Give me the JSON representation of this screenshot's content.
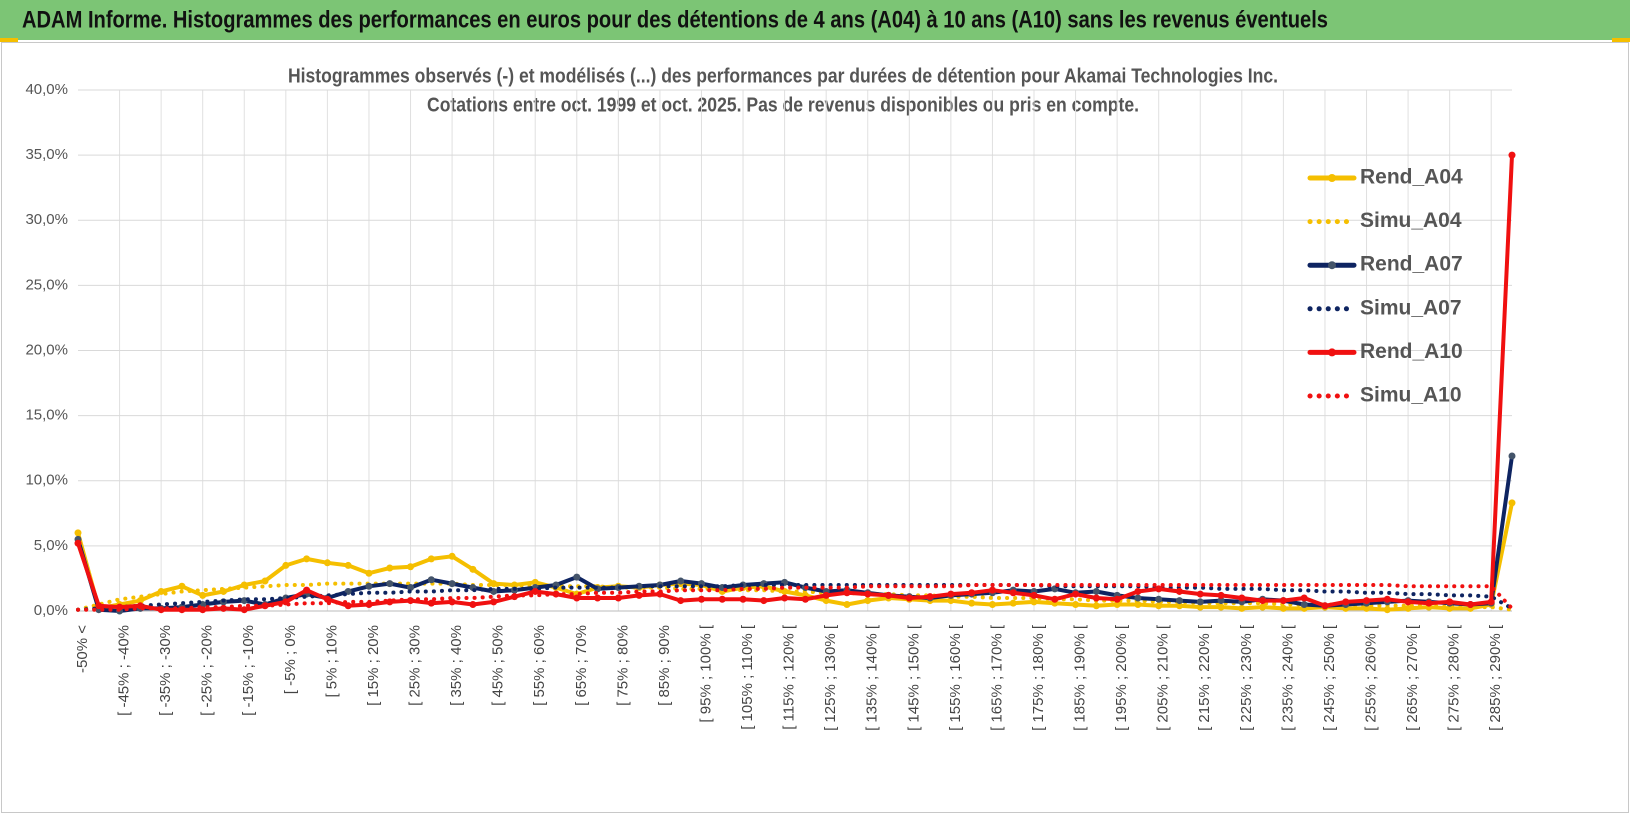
{
  "header": {
    "title": "ADAM Informe. Histogrammes des performances en euros pour des détentions de 4 ans (A04) à 10 ans (A10) sans les revenus éventuels"
  },
  "chart_data": {
    "type": "line",
    "title": "Histogrammes observés (-) et modélisés (...) des performances par durées de détention pour Akamai Technologies Inc.",
    "subtitle": "Cotations entre oct. 1999 et oct. 2025. Pas de revenus disponibles ou pris en compte.",
    "categories": [
      "-50% <",
      null,
      "[ -45% ; -40%",
      null,
      "[ -35% ; -30%",
      null,
      "[ -25% ; -20%",
      null,
      "[ -15% ; -10%",
      null,
      "[ -5% ; 0%",
      null,
      "[ 5% ; 10%",
      null,
      "[ 15% ; 20%",
      null,
      "[ 25% ; 30%",
      null,
      "[ 35% ; 40%",
      null,
      "[ 45% ; 50%",
      null,
      "[ 55% ; 60%",
      null,
      "[ 65% ; 70%",
      null,
      "[ 75% ; 80%",
      null,
      "[ 85% ; 90%",
      null,
      "[ 95% ; 100% [",
      null,
      "[ 105% ; 110% [",
      null,
      "[ 115% ; 120% [",
      null,
      "[ 125% ; 130% [",
      null,
      "[ 135% ; 140% [",
      null,
      "[ 145% ; 150% [",
      null,
      "[ 155% ; 160% [",
      null,
      "[ 165% ; 170% [",
      null,
      "[ 175% ; 180% [",
      null,
      "[ 185% ; 190% [",
      null,
      "[ 195% ; 200% [",
      null,
      "[ 205% ; 210% [",
      null,
      "[ 215% ; 220% [",
      null,
      "[ 225% ; 230% [",
      null,
      "[ 235% ; 240% [",
      null,
      "[ 245% ; 250% [",
      null,
      "[ 255% ; 260% [",
      null,
      "[ 265% ; 270% [",
      null,
      "[ 275% ; 280% [",
      null,
      "[ 285% ; 290% [",
      null
    ],
    "ylim": [
      0,
      40
    ],
    "yticks": [
      {
        "value": 0,
        "label": "0,0%"
      },
      {
        "value": 5,
        "label": "5,0%"
      },
      {
        "value": 10,
        "label": "10,0%"
      },
      {
        "value": 15,
        "label": "15,0%"
      },
      {
        "value": 20,
        "label": "20,0%"
      },
      {
        "value": 25,
        "label": "25,0%"
      },
      {
        "value": 30,
        "label": "30,0%"
      },
      {
        "value": 35,
        "label": "35,0%"
      },
      {
        "value": 40,
        "label": "40,0%"
      }
    ],
    "grid": true,
    "legend": "right",
    "series": [
      {
        "name": "Rend_A04",
        "color": "#f5bf00",
        "style": "solid",
        "values": [
          6.0,
          0.2,
          0.5,
          0.8,
          1.5,
          1.9,
          1.2,
          1.5,
          2.0,
          2.3,
          3.5,
          4.0,
          3.7,
          3.5,
          2.9,
          3.3,
          3.4,
          4.0,
          4.2,
          3.2,
          2.1,
          2.0,
          2.2,
          1.8,
          1.3,
          1.8,
          1.9,
          1.8,
          2.0,
          2.1,
          2.0,
          1.5,
          1.8,
          1.9,
          1.5,
          1.2,
          0.8,
          0.5,
          0.8,
          1.0,
          0.9,
          0.8,
          0.8,
          0.6,
          0.5,
          0.6,
          0.7,
          0.6,
          0.5,
          0.4,
          0.5,
          0.5,
          0.4,
          0.4,
          0.3,
          0.3,
          0.2,
          0.3,
          0.2,
          0.2,
          0.3,
          0.2,
          0.2,
          0.1,
          0.2,
          0.3,
          0.2,
          0.2,
          0.5,
          8.3
        ]
      },
      {
        "name": "Simu_A04",
        "color": "#f5bf00",
        "style": "dotted",
        "values": [
          0.1,
          0.5,
          0.9,
          1.1,
          1.3,
          1.5,
          1.6,
          1.7,
          1.8,
          1.9,
          2.0,
          2.0,
          2.1,
          2.1,
          2.1,
          2.1,
          2.1,
          2.1,
          2.1,
          2.0,
          2.0,
          2.0,
          1.9,
          1.9,
          1.9,
          1.9,
          1.8,
          1.8,
          1.8,
          1.7,
          1.7,
          1.7,
          1.6,
          1.6,
          1.5,
          1.5,
          1.4,
          1.4,
          1.3,
          1.3,
          1.2,
          1.2,
          1.1,
          1.1,
          1.0,
          1.0,
          1.0,
          0.9,
          0.9,
          0.8,
          0.8,
          0.8,
          0.7,
          0.7,
          0.6,
          0.6,
          0.6,
          0.6,
          0.5,
          0.5,
          0.5,
          0.5,
          0.4,
          0.4,
          0.4,
          0.4,
          0.3,
          0.3,
          0.3,
          0.1
        ]
      },
      {
        "name": "Rend_A07",
        "color": "#0e2461",
        "style": "solid",
        "values": [
          5.5,
          0.1,
          0.0,
          0.2,
          0.2,
          0.3,
          0.5,
          0.7,
          0.8,
          0.5,
          1.0,
          1.3,
          1.0,
          1.5,
          1.9,
          2.1,
          1.8,
          2.4,
          2.1,
          1.8,
          1.5,
          1.6,
          1.8,
          2.0,
          2.6,
          1.7,
          1.8,
          1.9,
          2.0,
          2.3,
          2.1,
          1.8,
          2.0,
          2.1,
          2.2,
          1.8,
          1.5,
          1.6,
          1.4,
          1.2,
          1.1,
          1.0,
          1.2,
          1.3,
          1.4,
          1.6,
          1.5,
          1.7,
          1.4,
          1.5,
          1.2,
          1.0,
          0.9,
          0.8,
          0.7,
          0.8,
          0.7,
          0.9,
          0.8,
          0.5,
          0.4,
          0.5,
          0.6,
          0.7,
          0.8,
          0.7,
          0.6,
          0.5,
          0.6,
          11.9
        ]
      },
      {
        "name": "Simu_A07",
        "color": "#0e2461",
        "style": "dotted",
        "values": [
          0.1,
          0.2,
          0.3,
          0.4,
          0.5,
          0.6,
          0.7,
          0.8,
          0.9,
          0.9,
          1.0,
          1.1,
          1.2,
          1.3,
          1.4,
          1.4,
          1.5,
          1.5,
          1.6,
          1.6,
          1.7,
          1.7,
          1.7,
          1.8,
          1.8,
          1.8,
          1.8,
          1.9,
          1.9,
          1.9,
          1.9,
          1.9,
          2.0,
          2.0,
          2.0,
          2.0,
          2.0,
          2.0,
          2.0,
          2.0,
          2.0,
          2.0,
          2.0,
          2.0,
          2.0,
          2.0,
          2.0,
          1.9,
          1.9,
          1.9,
          1.9,
          1.9,
          1.8,
          1.8,
          1.8,
          1.7,
          1.7,
          1.7,
          1.6,
          1.6,
          1.5,
          1.5,
          1.4,
          1.4,
          1.3,
          1.3,
          1.2,
          1.2,
          1.1,
          0.2
        ]
      },
      {
        "name": "Rend_A10",
        "color": "#f01010",
        "style": "solid",
        "values": [
          5.2,
          0.4,
          0.3,
          0.4,
          0.1,
          0.1,
          0.1,
          0.2,
          0.1,
          0.4,
          0.7,
          1.6,
          0.9,
          0.4,
          0.5,
          0.7,
          0.8,
          0.6,
          0.7,
          0.5,
          0.7,
          1.1,
          1.5,
          1.3,
          1.0,
          1.0,
          1.0,
          1.2,
          1.3,
          0.8,
          0.9,
          0.9,
          0.9,
          0.8,
          1.0,
          0.9,
          1.2,
          1.4,
          1.3,
          1.2,
          1.0,
          1.1,
          1.3,
          1.4,
          1.6,
          1.4,
          1.2,
          0.9,
          1.3,
          1.0,
          0.9,
          1.5,
          1.7,
          1.5,
          1.3,
          1.2,
          1.0,
          0.8,
          0.8,
          1.0,
          0.4,
          0.7,
          0.8,
          0.9,
          0.7,
          0.6,
          0.7,
          0.5,
          0.7,
          35.0
        ]
      },
      {
        "name": "Simu_A10",
        "color": "#f01010",
        "style": "dotted",
        "values": [
          0.1,
          0.1,
          0.1,
          0.2,
          0.2,
          0.2,
          0.3,
          0.3,
          0.4,
          0.4,
          0.5,
          0.6,
          0.6,
          0.7,
          0.7,
          0.8,
          0.9,
          0.9,
          1.0,
          1.0,
          1.1,
          1.2,
          1.2,
          1.3,
          1.3,
          1.4,
          1.4,
          1.5,
          1.5,
          1.6,
          1.6,
          1.6,
          1.7,
          1.7,
          1.8,
          1.8,
          1.8,
          1.8,
          1.9,
          1.9,
          1.9,
          1.9,
          1.9,
          2.0,
          2.0,
          2.0,
          2.0,
          2.0,
          2.0,
          2.0,
          2.0,
          2.0,
          2.0,
          2.0,
          2.0,
          2.0,
          2.0,
          2.0,
          2.0,
          2.0,
          2.0,
          2.0,
          2.0,
          2.0,
          1.9,
          1.9,
          1.9,
          1.9,
          1.9,
          0.2
        ]
      }
    ]
  }
}
